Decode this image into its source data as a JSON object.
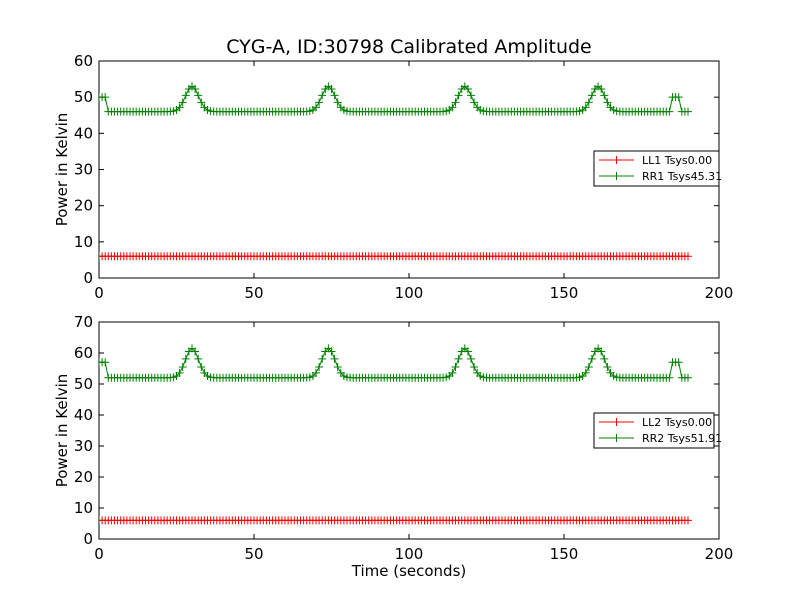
{
  "chart_data": [
    {
      "type": "line",
      "title": "CYG-A, ID:30798 Calibrated Amplitude",
      "xlabel": "",
      "ylabel": "Power in Kelvin",
      "xlim": [
        0,
        200
      ],
      "ylim": [
        0,
        60
      ],
      "xticks": [
        0,
        50,
        100,
        150,
        200
      ],
      "yticks": [
        0,
        10,
        20,
        30,
        40,
        50,
        60
      ],
      "legend_position": "center-right",
      "series": [
        {
          "name": "LL1 Tsys0.00",
          "color": "#ff0000",
          "shape": {
            "kind": "flat",
            "x_start": 0,
            "x_end": 190,
            "level": 6
          }
        },
        {
          "name": "RR1 Tsys45.31",
          "color": "#008000",
          "shape": {
            "kind": "peaks",
            "x_start": 0,
            "x_end": 190,
            "baseline": 46,
            "start_level": 50,
            "start_until": 2.5,
            "peaks": [
              {
                "x": 30,
                "y": 53
              },
              {
                "x": 74,
                "y": 53
              },
              {
                "x": 118,
                "y": 53
              },
              {
                "x": 161,
                "y": 53
              }
            ],
            "spike": {
              "x_from": 185,
              "x_to": 187.5,
              "y": 50
            }
          }
        }
      ]
    },
    {
      "type": "line",
      "title": "",
      "xlabel": "Time (seconds)",
      "ylabel": "Power in Kelvin",
      "xlim": [
        0,
        200
      ],
      "ylim": [
        0,
        70
      ],
      "xticks": [
        0,
        50,
        100,
        150,
        200
      ],
      "yticks": [
        0,
        10,
        20,
        30,
        40,
        50,
        60,
        70
      ],
      "legend_position": "center-right",
      "series": [
        {
          "name": "LL2 Tsys0.00",
          "color": "#ff0000",
          "shape": {
            "kind": "flat",
            "x_start": 0,
            "x_end": 190,
            "level": 6
          }
        },
        {
          "name": "RR2 Tsys51.91",
          "color": "#008000",
          "shape": {
            "kind": "peaks",
            "x_start": 0,
            "x_end": 190,
            "baseline": 52,
            "start_level": 57,
            "start_until": 2.5,
            "peaks": [
              {
                "x": 30,
                "y": 61.5
              },
              {
                "x": 74,
                "y": 61.5
              },
              {
                "x": 118,
                "y": 61.5
              },
              {
                "x": 161,
                "y": 61.5
              }
            ],
            "spike": {
              "x_from": 185,
              "x_to": 187.5,
              "y": 57
            }
          }
        }
      ]
    }
  ]
}
